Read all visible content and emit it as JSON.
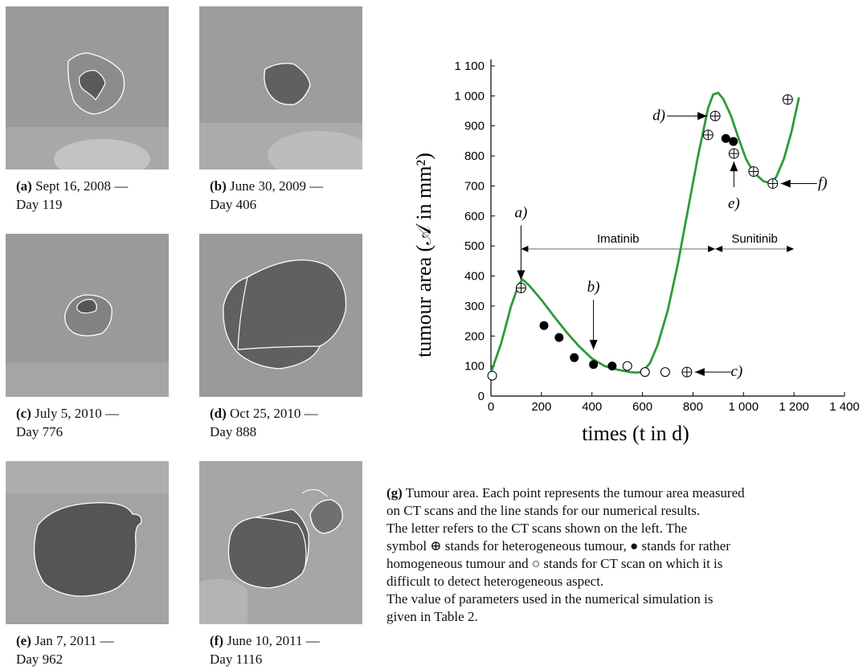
{
  "panels": [
    {
      "id": "a",
      "label": "(a)",
      "caption": "Sept 16, 2008 —",
      "day": "Day 119"
    },
    {
      "id": "b",
      "label": "(b)",
      "caption": "June 30, 2009 —",
      "day": "Day 406"
    },
    {
      "id": "c",
      "label": "(c)",
      "caption": "July 5, 2010 —",
      "day": "Day 776"
    },
    {
      "id": "d",
      "label": "(d)",
      "caption": "Oct 25, 2010 —",
      "day": "Day 888"
    },
    {
      "id": "e",
      "label": "(e)",
      "caption": "Jan 7, 2011 —",
      "day": "Day 962"
    },
    {
      "id": "f",
      "label": "(f)",
      "caption": "June 10, 2011 —",
      "day": "Day 1116"
    }
  ],
  "figure_caption": {
    "label": "(g)",
    "line1": "Tumour area. Each point represents the tumour area measured",
    "line2": "on CT scans and the line stands for our numerical results.",
    "line3": "The letter refers to the CT scans shown on the left. The",
    "line4": "symbol ⊕ stands for heterogeneous tumour, ● stands for rather",
    "line5": "homogeneous tumour and ○ stands for CT scan on which it is",
    "line6": "difficult to detect heterogeneous aspect.",
    "line7": "The value of parameters used in the numerical simulation is",
    "line8": "given in Table 2."
  },
  "chart_data": {
    "type": "scatter",
    "xlabel": "times (t in d)",
    "ylabel": "tumour area (𝒜 in mm²)",
    "xlim": [
      0,
      1400
    ],
    "ylim": [
      0,
      1100
    ],
    "xticks": [
      "0",
      "200",
      "400",
      "600",
      "800",
      "1 000",
      "1 200",
      "1 400"
    ],
    "yticks": [
      "0",
      "100",
      "200",
      "300",
      "400",
      "500",
      "600",
      "700",
      "800",
      "900",
      "1 000",
      "1 100"
    ],
    "line_color": "#2e9a3c",
    "series": [
      {
        "name": "heterogeneous",
        "symbol": "oplus",
        "points": [
          [
            119,
            360
          ],
          [
            776,
            80
          ],
          [
            860,
            870
          ],
          [
            888,
            933
          ],
          [
            962,
            808
          ],
          [
            1040,
            748
          ],
          [
            1116,
            708
          ],
          [
            1175,
            988
          ]
        ]
      },
      {
        "name": "homogeneous",
        "symbol": "filled",
        "points": [
          [
            210,
            235
          ],
          [
            270,
            195
          ],
          [
            330,
            128
          ],
          [
            406,
            105
          ],
          [
            480,
            100
          ],
          [
            930,
            858
          ],
          [
            960,
            848
          ]
        ]
      },
      {
        "name": "undetermined",
        "symbol": "open",
        "points": [
          [
            5,
            68
          ],
          [
            540,
            100
          ],
          [
            610,
            80
          ],
          [
            690,
            80
          ]
        ]
      }
    ],
    "simulation": {
      "x": [
        0,
        40,
        80,
        110,
        125,
        150,
        200,
        250,
        300,
        350,
        400,
        450,
        500,
        550,
        580,
        600,
        630,
        660,
        700,
        740,
        780,
        820,
        860,
        880,
        900,
        920,
        950,
        980,
        1010,
        1040,
        1080,
        1110,
        1130,
        1160,
        1190,
        1220
      ],
      "y": [
        78,
        175,
        300,
        372,
        388,
        370,
        320,
        265,
        212,
        165,
        125,
        100,
        88,
        80,
        78,
        82,
        110,
        170,
        285,
        440,
        620,
        800,
        960,
        1005,
        1010,
        990,
        935,
        860,
        790,
        745,
        715,
        710,
        730,
        790,
        880,
        995
      ]
    },
    "annotations": [
      {
        "text": "a)",
        "x": 119,
        "y": 360
      },
      {
        "text": "b)",
        "x": 406,
        "y": 128
      },
      {
        "text": "c)",
        "x": 776,
        "y": 80
      },
      {
        "text": "d)",
        "x": 888,
        "y": 933
      },
      {
        "text": "e)",
        "x": 962,
        "y": 808
      },
      {
        "text": "f)",
        "x": 1116,
        "y": 708
      }
    ],
    "treatments": [
      {
        "name": "Imatinib",
        "start": 119,
        "end": 888
      },
      {
        "name": "Sunitinib",
        "start": 888,
        "end": 1200
      }
    ]
  }
}
